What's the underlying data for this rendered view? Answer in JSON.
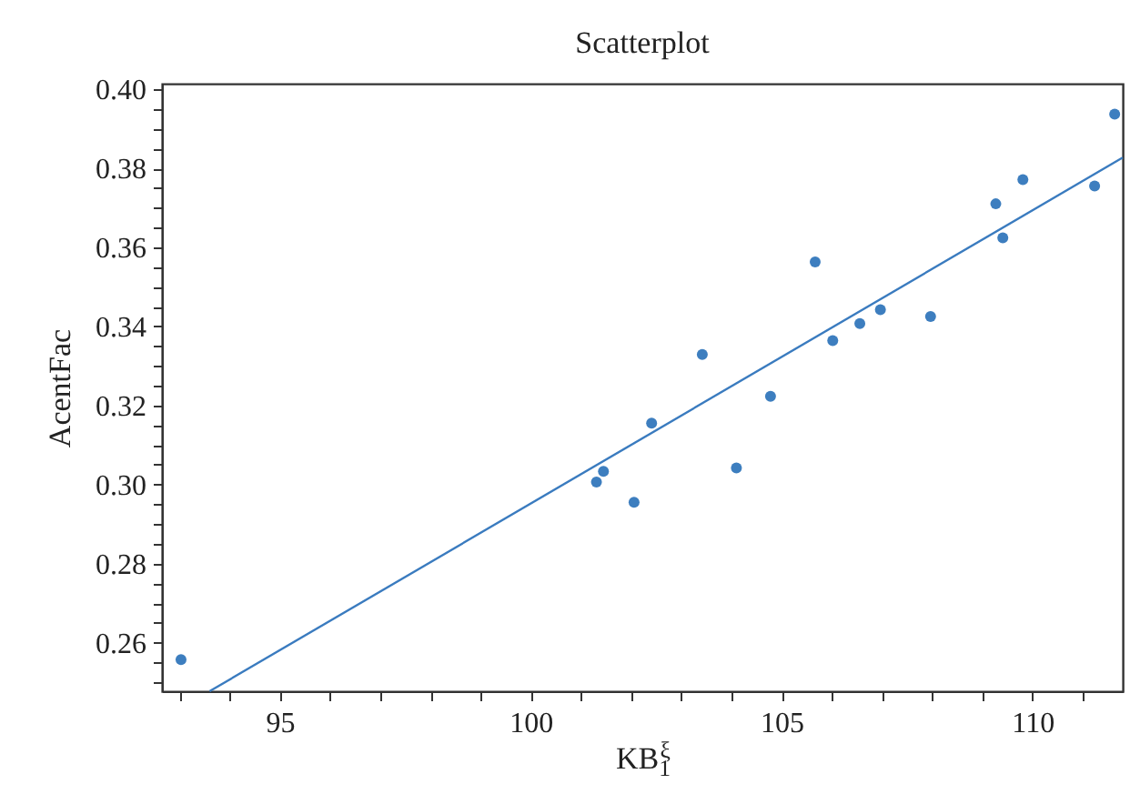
{
  "chart_data": {
    "type": "scatter",
    "title": "Scatterplot",
    "xlabel": "KB$_{1}$$^{ξ}$",
    "ylabel": "AcentFac",
    "xlim": [
      92.65,
      111.8
    ],
    "ylim": [
      0.2477,
      0.4014
    ],
    "xticks": [
      {
        "value": 93,
        "label": null
      },
      {
        "value": 94,
        "label": null
      },
      95,
      {
        "value": 96,
        "label": null
      },
      {
        "value": 97,
        "label": null
      },
      {
        "value": 98,
        "label": null
      },
      {
        "value": 99,
        "label": null
      },
      100,
      {
        "value": 101,
        "label": null
      },
      {
        "value": 102,
        "label": null
      },
      {
        "value": 103,
        "label": null
      },
      {
        "value": 104,
        "label": null
      },
      105,
      {
        "value": 106,
        "label": null
      },
      {
        "value": 107,
        "label": null
      },
      {
        "value": 108,
        "label": null
      },
      {
        "value": 109,
        "label": null
      },
      110,
      {
        "value": 111,
        "label": null
      }
    ],
    "yticks": [
      {
        "value": 0.25,
        "label": null
      },
      {
        "value": 0.255,
        "label": null
      },
      0.26,
      {
        "value": 0.265,
        "label": null
      },
      {
        "value": 0.27,
        "label": null
      },
      {
        "value": 0.275,
        "label": null
      },
      0.28,
      {
        "value": 0.285,
        "label": null
      },
      {
        "value": 0.29,
        "label": null
      },
      {
        "value": 0.295,
        "label": null
      },
      {
        "value": 0.3,
        "label": "0.30"
      },
      {
        "value": 0.305,
        "label": null
      },
      {
        "value": 0.31,
        "label": null
      },
      {
        "value": 0.315,
        "label": null
      },
      0.32,
      {
        "value": 0.325,
        "label": null
      },
      {
        "value": 0.33,
        "label": null
      },
      {
        "value": 0.335,
        "label": null
      },
      0.34,
      {
        "value": 0.345,
        "label": null
      },
      {
        "value": 0.35,
        "label": null
      },
      {
        "value": 0.355,
        "label": null
      },
      0.36,
      {
        "value": 0.365,
        "label": null
      },
      {
        "value": 0.37,
        "label": null
      },
      {
        "value": 0.375,
        "label": null
      },
      0.38,
      {
        "value": 0.385,
        "label": null
      },
      {
        "value": 0.39,
        "label": null
      },
      {
        "value": 0.395,
        "label": null
      },
      {
        "value": 0.4,
        "label": "0.40"
      }
    ],
    "grid": false,
    "series": [
      {
        "type": "scatter",
        "marker": "circle",
        "color": "#3d7ebf",
        "x": [
          93.03,
          101.31,
          101.45,
          102.06,
          102.41,
          103.42,
          104.1,
          104.78,
          105.67,
          106.02,
          106.56,
          106.97,
          107.97,
          109.27,
          109.41,
          109.81,
          111.24,
          111.64
        ],
        "values": [
          0.2557,
          0.3006,
          0.3033,
          0.2955,
          0.3155,
          0.3329,
          0.3042,
          0.3223,
          0.3563,
          0.3364,
          0.3407,
          0.3442,
          0.3425,
          0.371,
          0.3624,
          0.3771,
          0.3755,
          0.3937
        ]
      },
      {
        "type": "line",
        "marker": "none",
        "color": "#3a7bbf",
        "line_style": "solid",
        "x": [
          93.6,
          111.8
        ],
        "values": [
          0.2477,
          0.3827
        ]
      }
    ]
  }
}
